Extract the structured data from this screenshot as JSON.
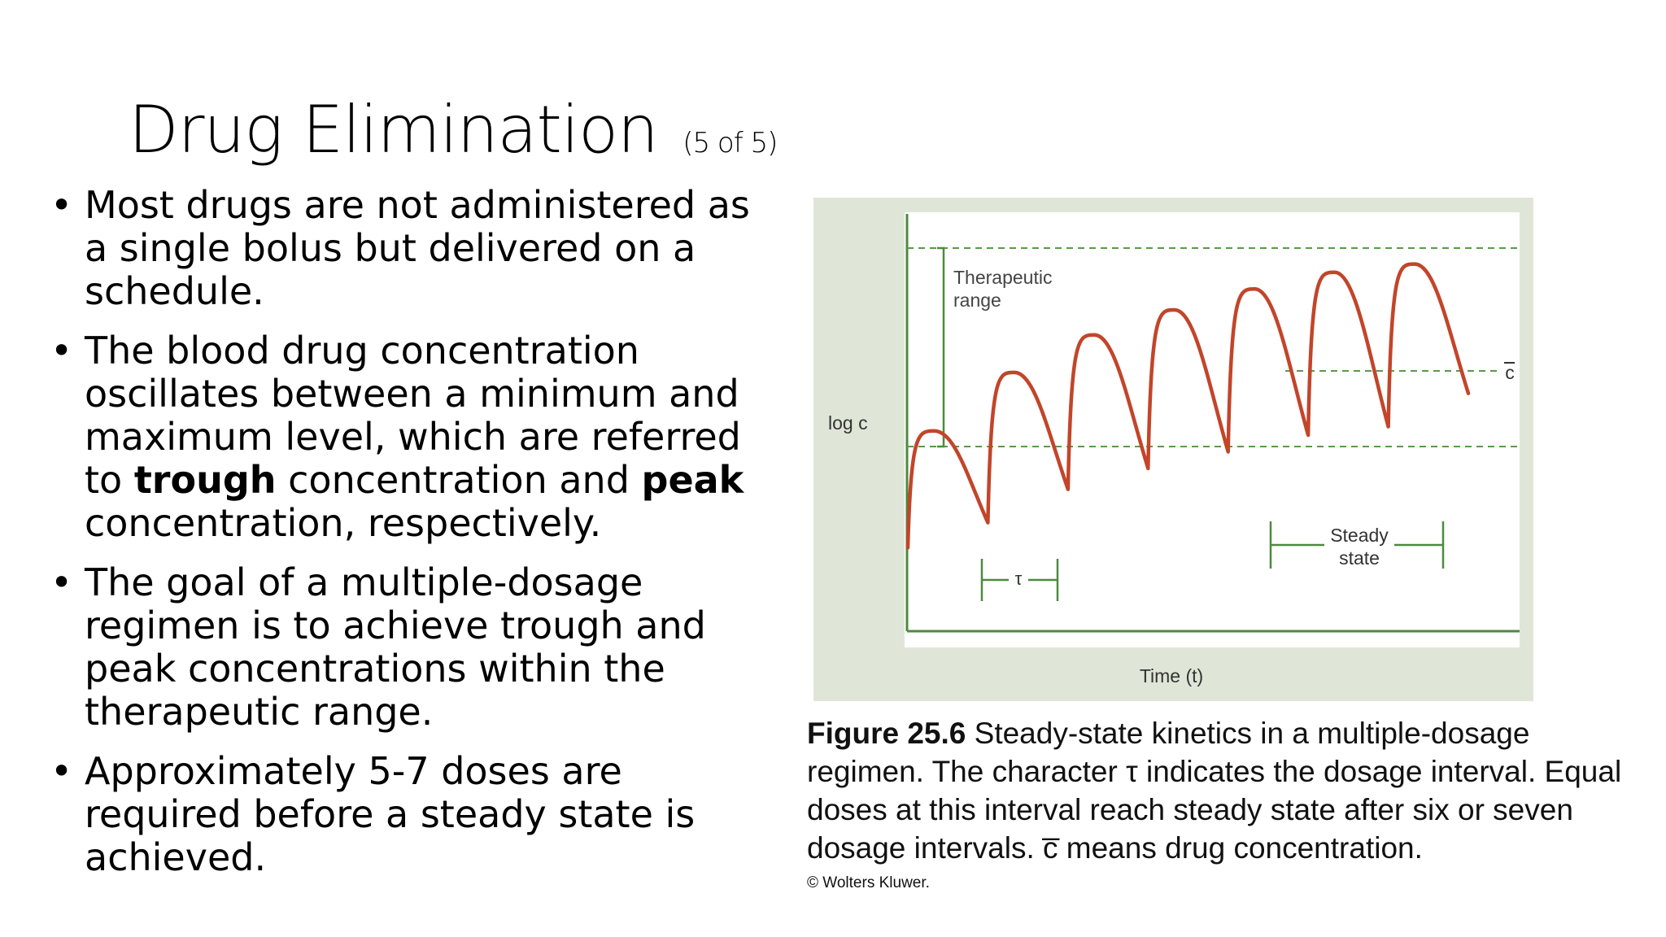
{
  "slide": {
    "title": "Drug Elimination",
    "title_suffix": "(5 of 5)",
    "bullets": [
      {
        "parts": [
          "Most drugs are not administered as a single bolus but delivered on a schedule."
        ]
      },
      {
        "parts": [
          "The blood drug concentration oscillates between a minimum and maximum level, which are referred to ",
          "trough",
          " concentration and ",
          "peak",
          " concentration, respectively."
        ]
      },
      {
        "parts": [
          "The goal of a multiple-dosage regimen is to achieve trough and peak concentrations within the therapeutic range."
        ]
      },
      {
        "parts": [
          "Approximately 5-7 doses are required before a steady state is achieved."
        ]
      }
    ]
  },
  "figure": {
    "labels": {
      "therapeutic_range": [
        "Therapeutic",
        "range"
      ],
      "y_axis": "log c",
      "x_axis": "Time (t)",
      "tau": "τ",
      "steady_state": [
        "Steady",
        "state"
      ],
      "c_bar": "c"
    },
    "colors": {
      "panel_bg": "#dfe6d7",
      "plot_bg": "#ffffff",
      "axis": "#4c8a3f",
      "dashed": "#5a9a4a",
      "curve": "#c2452a"
    },
    "curve": {
      "description_free": true,
      "dose_count": 7,
      "doses": [
        {
          "trough_start": 0.2,
          "peak": 0.48,
          "trough_end": 0.26
        },
        {
          "trough_start": 0.26,
          "peak": 0.62,
          "trough_end": 0.34
        },
        {
          "trough_start": 0.34,
          "peak": 0.71,
          "trough_end": 0.39
        },
        {
          "trough_start": 0.39,
          "peak": 0.77,
          "trough_end": 0.43
        },
        {
          "trough_start": 0.43,
          "peak": 0.82,
          "trough_end": 0.47
        },
        {
          "trough_start": 0.47,
          "peak": 0.86,
          "trough_end": 0.49
        },
        {
          "trough_start": 0.49,
          "peak": 0.88,
          "trough_end": 0.57
        }
      ]
    },
    "caption_label": "Figure 25.6",
    "caption_text": "Steady-state kinetics in a multiple-dosage regimen. The character τ indicates the dosage interval. Equal doses at this interval reach steady state after six or seven dosage intervals. c̅ means drug concentration.",
    "credit": "© Wolters Kluwer."
  }
}
